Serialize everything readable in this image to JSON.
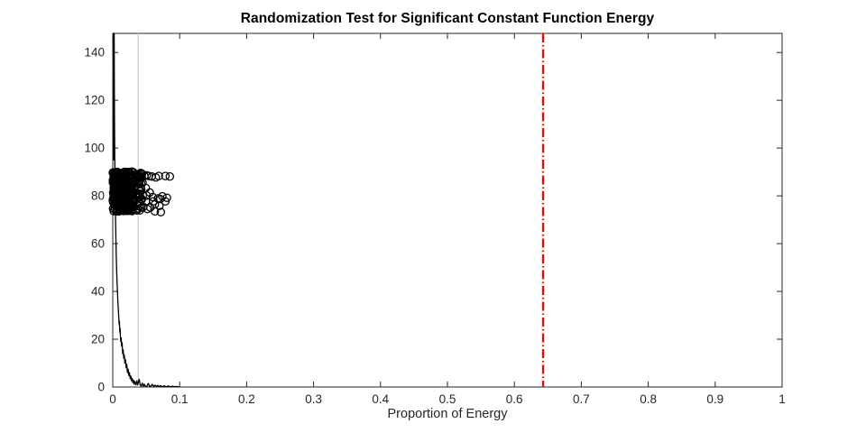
{
  "figure": {
    "background": "#ffffff"
  },
  "chart_data": {
    "type": "scatter",
    "title": "Randomization Test for Significant Constant Function Energy",
    "xlabel": "Proportion of Energy",
    "ylabel": "",
    "xlim": [
      0,
      1
    ],
    "ylim": [
      0,
      148
    ],
    "grid": false,
    "legend": "none",
    "axis_color": "#262626",
    "xticks": [
      0,
      0.1,
      0.2,
      0.3,
      0.4,
      0.5,
      0.6,
      0.7,
      0.8,
      0.9,
      1
    ],
    "xtick_labels": [
      "0",
      "0.1",
      "0.2",
      "0.3",
      "0.4",
      "0.5",
      "0.6",
      "0.7",
      "0.8",
      "0.9",
      "1"
    ],
    "yticks": [
      0,
      20,
      40,
      60,
      80,
      100,
      120,
      140
    ],
    "ytick_labels": [
      "0",
      "20",
      "40",
      "60",
      "80",
      "100",
      "120",
      "140"
    ],
    "series": [
      {
        "name": "null-distribution-curve",
        "type": "line",
        "color": "#000000",
        "width": 1.3,
        "points": [
          [
            0.0008,
            148
          ],
          [
            0.0012,
            95
          ],
          [
            0.0016,
            148
          ],
          [
            0.0021,
            148
          ],
          [
            0.0024,
            125
          ],
          [
            0.0027,
            108
          ],
          [
            0.003,
            96
          ],
          [
            0.0034,
            86
          ],
          [
            0.0038,
            77
          ],
          [
            0.0042,
            70
          ],
          [
            0.0047,
            62
          ],
          [
            0.0052,
            55
          ],
          [
            0.0058,
            49
          ],
          [
            0.0064,
            44
          ],
          [
            0.007,
            40
          ],
          [
            0.0076,
            36
          ],
          [
            0.0082,
            33
          ],
          [
            0.0088,
            30
          ],
          [
            0.0092,
            28
          ],
          [
            0.0096,
            26
          ],
          [
            0.01,
            27.5
          ],
          [
            0.0105,
            23
          ],
          [
            0.011,
            24.5
          ],
          [
            0.0115,
            21
          ],
          [
            0.012,
            19
          ],
          [
            0.0126,
            20.5
          ],
          [
            0.0132,
            17
          ],
          [
            0.014,
            18.5
          ],
          [
            0.0148,
            14
          ],
          [
            0.0156,
            15.5
          ],
          [
            0.0164,
            12
          ],
          [
            0.0172,
            13.5
          ],
          [
            0.018,
            10
          ],
          [
            0.019,
            11.5
          ],
          [
            0.02,
            8
          ],
          [
            0.021,
            9.5
          ],
          [
            0.022,
            6
          ],
          [
            0.023,
            7.5
          ],
          [
            0.024,
            4.8
          ],
          [
            0.025,
            6
          ],
          [
            0.026,
            3.5
          ],
          [
            0.027,
            4.6
          ],
          [
            0.028,
            2.6
          ],
          [
            0.029,
            3.6
          ],
          [
            0.03,
            1.8
          ],
          [
            0.031,
            2.9
          ],
          [
            0.032,
            1.2
          ],
          [
            0.033,
            2.3
          ],
          [
            0.0345,
            0.9
          ],
          [
            0.036,
            2.6
          ],
          [
            0.037,
            0.9
          ],
          [
            0.038,
            1.8
          ],
          [
            0.0395,
            3.2
          ],
          [
            0.041,
            0.8
          ],
          [
            0.0425,
            0.4
          ],
          [
            0.044,
            1.6
          ],
          [
            0.0455,
            0.3
          ],
          [
            0.047,
            1.2
          ],
          [
            0.049,
            0.2
          ],
          [
            0.051,
            0.3
          ],
          [
            0.053,
            1.5
          ],
          [
            0.055,
            0.3
          ],
          [
            0.057,
            0.4
          ],
          [
            0.059,
            1.1
          ],
          [
            0.061,
            0.2
          ],
          [
            0.063,
            0.8
          ],
          [
            0.065,
            0.15
          ],
          [
            0.067,
            0.7
          ],
          [
            0.069,
            0.15
          ],
          [
            0.071,
            0.6
          ],
          [
            0.074,
            0.1
          ],
          [
            0.077,
            0.5
          ],
          [
            0.08,
            0.1
          ],
          [
            0.083,
            0.45
          ],
          [
            0.086,
            0.08
          ],
          [
            0.089,
            0.35
          ],
          [
            0.092,
            0.08
          ],
          [
            0.095,
            0.25
          ],
          [
            0.098,
            0.05
          ],
          [
            0.1,
            0.02
          ]
        ]
      },
      {
        "name": "gray-threshold-vline",
        "type": "vline",
        "x": 0.038,
        "color": "#c8c8c8",
        "width": 1.2,
        "style": "solid"
      },
      {
        "name": "observed-energy-vline",
        "type": "vline",
        "x": 0.643,
        "color": "#ff0000",
        "width": 2.3,
        "style": "dash-dot",
        "dash": "10 3 1.5 3"
      },
      {
        "name": "permutation-scatter",
        "type": "scatter",
        "marker": "open-circle",
        "color": "#000000",
        "marker_radius": 4.1,
        "marker_stroke": 1.25,
        "dense_cluster": {
          "seed": 20240,
          "count": 330,
          "x_range": [
            0.0,
            0.0295
          ],
          "y_range": [
            73.5,
            90.2
          ],
          "x_power": 1.1
        },
        "mid_cluster": {
          "seed": 777,
          "count": 46,
          "x_range": [
            0.028,
            0.046
          ],
          "y_range": [
            73.3,
            90.0
          ],
          "x_power": 1.0
        },
        "outliers": [
          [
            0.0404,
            89.0
          ],
          [
            0.0418,
            88.0
          ],
          [
            0.0472,
            88.3
          ],
          [
            0.0508,
            88.6
          ],
          [
            0.0539,
            88.3
          ],
          [
            0.0583,
            88.1
          ],
          [
            0.0643,
            87.7
          ],
          [
            0.0687,
            88.3
          ],
          [
            0.0786,
            88.3
          ],
          [
            0.0853,
            88.1
          ],
          [
            0.0404,
            82.0
          ],
          [
            0.0449,
            80.1
          ],
          [
            0.0494,
            83.3
          ],
          [
            0.0553,
            81.4
          ],
          [
            0.0508,
            80.1
          ],
          [
            0.0597,
            79.5
          ],
          [
            0.0674,
            78.9
          ],
          [
            0.0741,
            79.8
          ],
          [
            0.0786,
            77.7
          ],
          [
            0.0427,
            78.9
          ],
          [
            0.0494,
            77.7
          ],
          [
            0.0606,
            77.7
          ],
          [
            0.0629,
            76.4
          ],
          [
            0.0697,
            75.8
          ],
          [
            0.071,
            78.7
          ],
          [
            0.0809,
            79.2
          ],
          [
            0.036,
            73.9
          ],
          [
            0.0427,
            75.1
          ],
          [
            0.0516,
            74.5
          ],
          [
            0.0562,
            75.1
          ],
          [
            0.0629,
            73.5
          ],
          [
            0.0718,
            73.2
          ]
        ]
      }
    ]
  }
}
